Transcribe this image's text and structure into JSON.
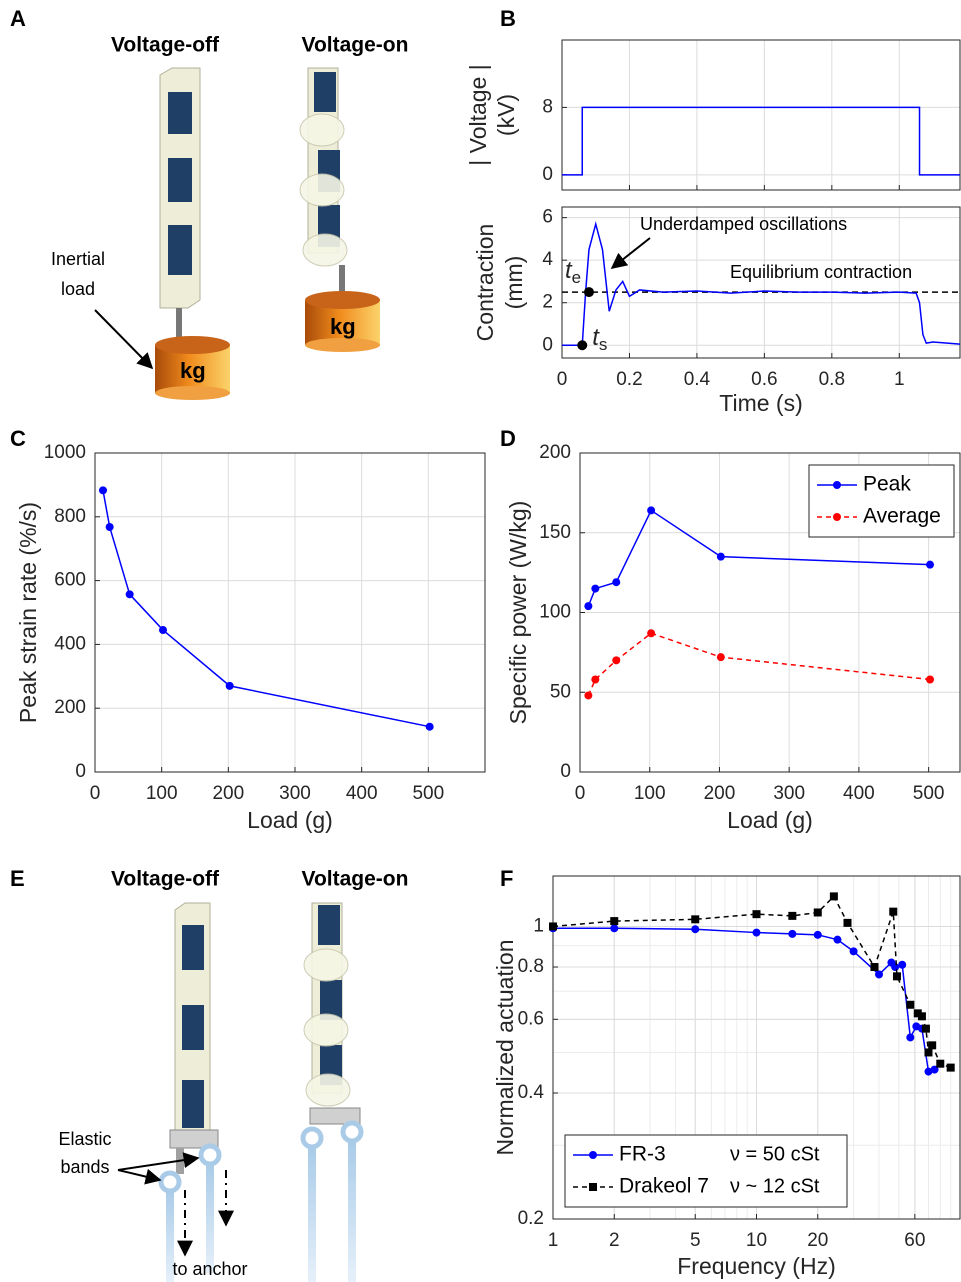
{
  "panels": [
    "A",
    "B",
    "C",
    "D",
    "E",
    "F"
  ],
  "illustration_a": {
    "titles": [
      "Voltage-off",
      "Voltage-on"
    ],
    "load_label": [
      "Inertial",
      "load"
    ],
    "mass_labels": [
      "kg",
      "kg"
    ]
  },
  "illustration_e": {
    "titles": [
      "Voltage-off",
      "Voltage-on"
    ],
    "band_label": [
      "Elastic",
      "bands"
    ],
    "anchor_label": "to anchor"
  },
  "chart_data": [
    {
      "type": "line",
      "ylabel": [
        "| Voltage |",
        "(kV)"
      ],
      "xlim": [
        0,
        1.18
      ],
      "ylim": [
        -1.8,
        16
      ],
      "xticks": [
        0,
        0.2,
        0.4,
        0.6,
        0.8,
        1
      ],
      "xtick_labels": false,
      "yticks": [
        0,
        8
      ],
      "grid": true,
      "series": [
        {
          "color": "#0000ff",
          "x": [
            0,
            0.06,
            0.06,
            1.06,
            1.06,
            1.18
          ],
          "values": [
            0,
            0,
            8,
            8,
            0,
            0
          ]
        }
      ]
    },
    {
      "type": "line",
      "ylabel": [
        "Contraction",
        "(mm)"
      ],
      "xlabel": "Time (s)",
      "xlim": [
        0,
        1.18
      ],
      "ylim": [
        -0.6,
        6.5
      ],
      "xticks": [
        0,
        0.2,
        0.4,
        0.6,
        0.8,
        1
      ],
      "yticks": [
        0,
        2,
        4,
        6
      ],
      "grid": true,
      "series": [
        {
          "color": "#0000ff",
          "x": [
            0,
            0.06,
            0.07,
            0.08,
            0.1,
            0.12,
            0.14,
            0.16,
            0.18,
            0.2,
            0.23,
            0.3,
            0.4,
            0.5,
            0.6,
            0.7,
            0.8,
            0.9,
            1.0,
            1.05,
            1.06,
            1.07,
            1.08,
            1.1,
            1.18
          ],
          "values": [
            0,
            0,
            2.5,
            4.5,
            5.7,
            4.5,
            1.6,
            2.6,
            3.0,
            2.3,
            2.6,
            2.5,
            2.55,
            2.45,
            2.55,
            2.5,
            2.5,
            2.45,
            2.5,
            2.45,
            2.0,
            0.5,
            0.1,
            0.15,
            0.05
          ]
        }
      ],
      "reference_line": {
        "value": 2.5,
        "label": "Equilibrium contraction"
      },
      "annotation": "Underdamped oscillations",
      "events": [
        {
          "x": 0.08,
          "y": 2.5,
          "symbol": "t",
          "sub": "e"
        },
        {
          "x": 0.06,
          "y": 0,
          "symbol": "t",
          "sub": "s"
        }
      ]
    },
    {
      "type": "line",
      "xlabel": "Load (g)",
      "ylabel": [
        "Peak strain rate (%/s)"
      ],
      "xlim": [
        0,
        585
      ],
      "ylim": [
        0,
        1000
      ],
      "xticks": [
        0,
        100,
        200,
        300,
        400,
        500
      ],
      "yticks": [
        0,
        200,
        400,
        600,
        800,
        1000
      ],
      "grid": true,
      "series": [
        {
          "color": "#0000ff",
          "marker": "circle",
          "linestyle": "solid",
          "x": [
            12,
            22,
            52,
            102,
            202,
            502
          ],
          "values": [
            883,
            768,
            557,
            445,
            270,
            142
          ]
        }
      ]
    },
    {
      "type": "line",
      "xlabel": "Load (g)",
      "ylabel": [
        "Specific power (W/kg)"
      ],
      "xlim": [
        0,
        545
      ],
      "ylim": [
        0,
        200
      ],
      "xticks": [
        0,
        100,
        200,
        300,
        400,
        500
      ],
      "yticks": [
        0,
        50,
        100,
        150,
        200
      ],
      "grid": true,
      "legend": "upper right",
      "series": [
        {
          "name": "Peak",
          "color": "#0000ff",
          "marker": "circle",
          "linestyle": "solid",
          "x": [
            12,
            22,
            52,
            102,
            202,
            502
          ],
          "values": [
            104,
            115,
            119,
            164,
            135,
            130
          ]
        },
        {
          "name": "Average",
          "color": "#ff0000",
          "marker": "circle",
          "linestyle": "dashed",
          "x": [
            12,
            22,
            52,
            102,
            202,
            502
          ],
          "values": [
            48,
            58,
            70,
            87,
            72,
            58
          ]
        }
      ]
    },
    {
      "type": "line",
      "xlabel": "Frequency (Hz)",
      "ylabel": [
        "Normalized actuation"
      ],
      "xscale": "log",
      "yscale": "log",
      "xlim": [
        1,
        100
      ],
      "ylim": [
        0.2,
        1.32
      ],
      "xticks": [
        1,
        2,
        5,
        10,
        20,
        60
      ],
      "yticks": [
        0.2,
        0.4,
        0.6,
        0.8,
        1
      ],
      "grid": true,
      "minor_grid": true,
      "legend": "lower left",
      "series": [
        {
          "name": "FR-3",
          "note": "ν = 50 cSt",
          "color": "#0000ff",
          "marker": "circle",
          "linestyle": "solid",
          "x": [
            1,
            2,
            5,
            10,
            15,
            20,
            25,
            30,
            40,
            46,
            48,
            52,
            57,
            61,
            65,
            70,
            75
          ],
          "values": [
            0.99,
            0.99,
            0.985,
            0.967,
            0.96,
            0.955,
            0.93,
            0.872,
            0.768,
            0.82,
            0.8,
            0.81,
            0.543,
            0.577,
            0.57,
            0.45,
            0.455
          ]
        },
        {
          "name": "Drakeol 7",
          "note": "ν ~ 12 cSt",
          "color": "#000000",
          "marker": "square",
          "linestyle": "dashed",
          "x": [
            1,
            2,
            5,
            10,
            15,
            20,
            24,
            28,
            38,
            47,
            49,
            57,
            62,
            65,
            68,
            70,
            73,
            80,
            90
          ],
          "values": [
            1.0,
            1.03,
            1.04,
            1.07,
            1.06,
            1.08,
            1.18,
            1.02,
            0.8,
            1.085,
            0.76,
            0.65,
            0.62,
            0.61,
            0.57,
            0.5,
            0.52,
            0.47,
            0.46
          ]
        }
      ]
    }
  ]
}
